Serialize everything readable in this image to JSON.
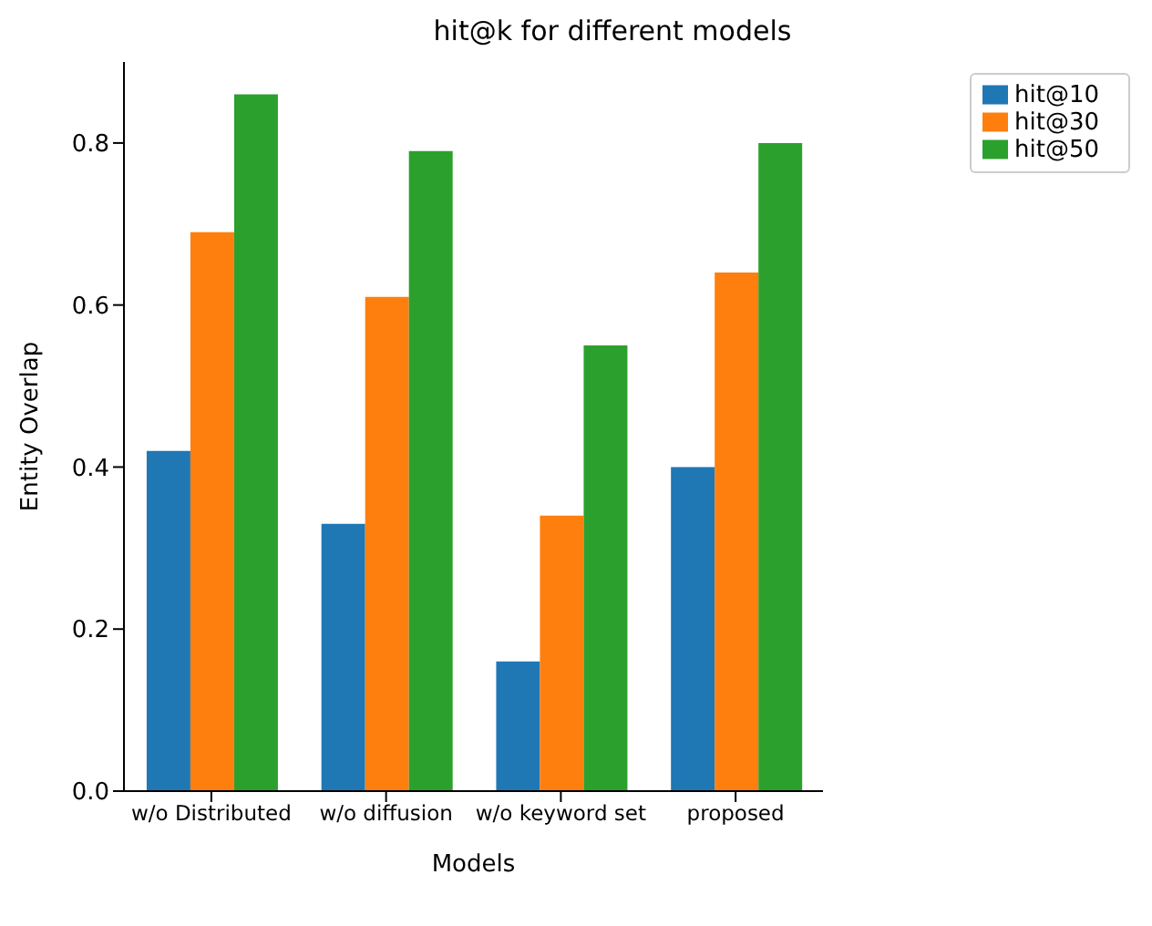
{
  "chart_data": {
    "type": "bar",
    "title": "hit@k for different models",
    "xlabel": "Models",
    "ylabel": "Entity Overlap",
    "categories": [
      "w/o Distributed",
      "w/o diffusion",
      "w/o keyword set",
      "proposed"
    ],
    "series": [
      {
        "name": "hit@10",
        "color": "#1f77b4",
        "values": [
          0.42,
          0.33,
          0.16,
          0.4
        ]
      },
      {
        "name": "hit@30",
        "color": "#ff7f0e",
        "values": [
          0.69,
          0.61,
          0.34,
          0.64
        ]
      },
      {
        "name": "hit@50",
        "color": "#2ca02c",
        "values": [
          0.86,
          0.79,
          0.55,
          0.8
        ]
      }
    ],
    "ylim": [
      0,
      0.9
    ],
    "yticks": [
      {
        "value": 0,
        "label": "0.0"
      },
      {
        "value": 0.2,
        "label": "0.2"
      },
      {
        "value": 0.4,
        "label": "0.4"
      },
      {
        "value": 0.6,
        "label": "0.6"
      },
      {
        "value": 0.8,
        "label": "0.8"
      }
    ],
    "grid": false,
    "legend": "top right"
  }
}
